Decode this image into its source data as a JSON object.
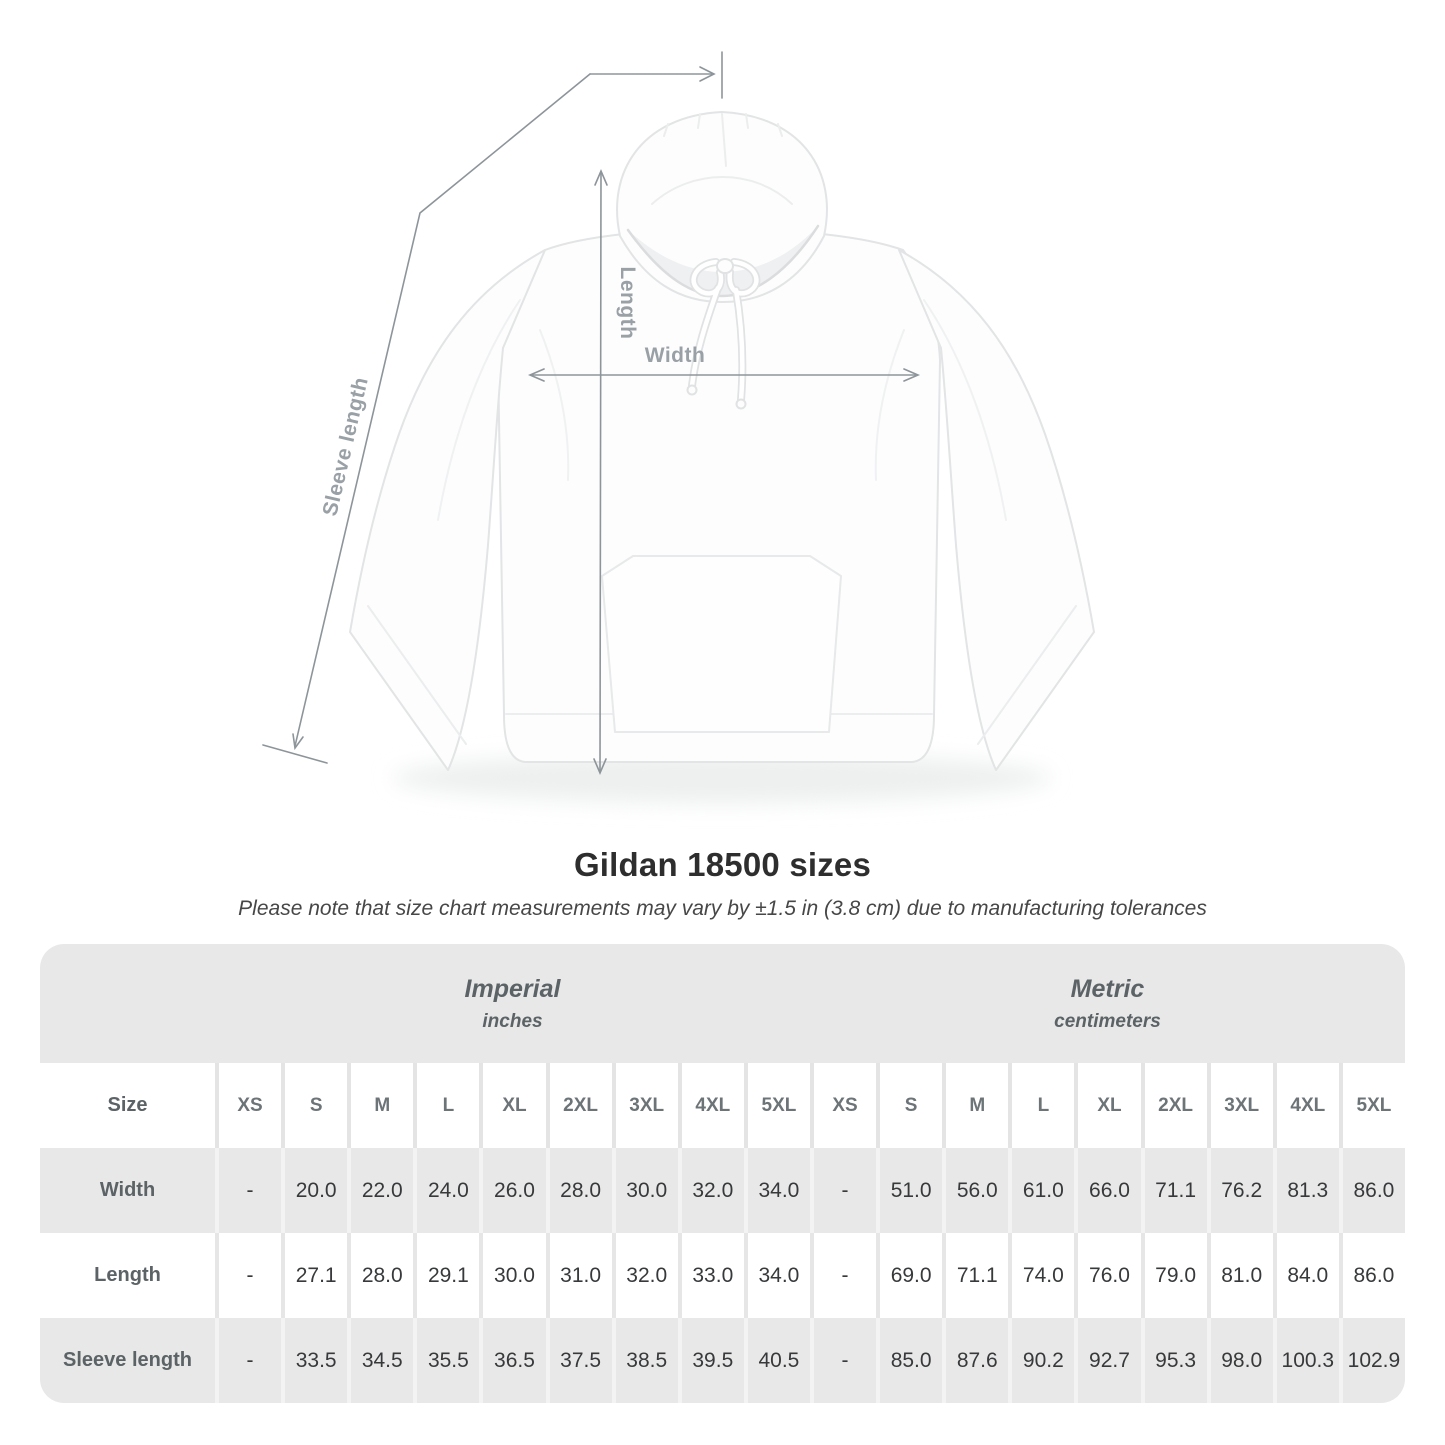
{
  "diagram": {
    "labels": {
      "length": "Length",
      "width": "Width",
      "sleeve": "Sleeve length"
    }
  },
  "heading": {
    "title": "Gildan 18500 sizes",
    "subtitle": "Please note that size chart measurements may vary by ±1.5 in (3.8 cm) due to manufacturing tolerances"
  },
  "table": {
    "size_col_header": "Size",
    "unit_groups": [
      {
        "name": "Imperial",
        "unit": "inches"
      },
      {
        "name": "Metric",
        "unit": "centimeters"
      }
    ],
    "sizes": [
      "XS",
      "S",
      "M",
      "L",
      "XL",
      "2XL",
      "3XL",
      "4XL",
      "5XL"
    ],
    "rows": [
      {
        "label": "Width",
        "imperial": [
          "-",
          "20.0",
          "22.0",
          "24.0",
          "26.0",
          "28.0",
          "30.0",
          "32.0",
          "34.0"
        ],
        "metric": [
          "-",
          "51.0",
          "56.0",
          "61.0",
          "66.0",
          "71.1",
          "76.2",
          "81.3",
          "86.0"
        ]
      },
      {
        "label": "Length",
        "imperial": [
          "-",
          "27.1",
          "28.0",
          "29.1",
          "30.0",
          "31.0",
          "32.0",
          "33.0",
          "34.0"
        ],
        "metric": [
          "-",
          "69.0",
          "71.1",
          "74.0",
          "76.0",
          "79.0",
          "81.0",
          "84.0",
          "86.0"
        ]
      },
      {
        "label": "Sleeve length",
        "imperial": [
          "-",
          "33.5",
          "34.5",
          "35.5",
          "36.5",
          "37.5",
          "38.5",
          "39.5",
          "40.5"
        ],
        "metric": [
          "-",
          "85.0",
          "87.6",
          "90.2",
          "92.7",
          "95.3",
          "98.0",
          "100.3",
          "102.9"
        ]
      }
    ]
  },
  "colors": {
    "table_band_gray": "#e8e8e8",
    "measure_line_gray": "#8d959a",
    "measure_label_gray": "#99a1a6",
    "title_text": "#2e2e2e"
  }
}
